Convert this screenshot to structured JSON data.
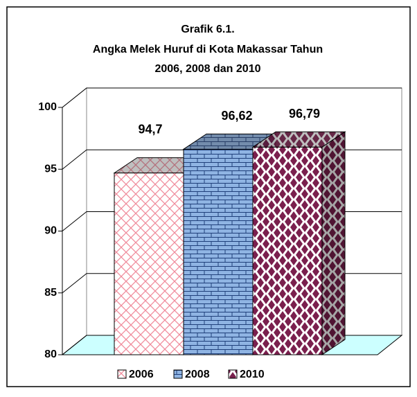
{
  "chart_data": {
    "type": "bar3d",
    "title_lines": [
      "Grafik 6.1.",
      "Angka Melek Huruf  di Kota Makassar Tahun",
      "2006, 2008 dan 2010"
    ],
    "categories": [
      "2006",
      "2008",
      "2010"
    ],
    "values": [
      94.7,
      96.62,
      96.79
    ],
    "value_labels": [
      "94,7",
      "96,62",
      "96,79"
    ],
    "colors": [
      "#f08c9c",
      "#3f6fb0",
      "#7a1f4d"
    ],
    "ylim": [
      80,
      100
    ],
    "yticks": [
      80,
      85,
      90,
      95,
      100
    ],
    "grid": true,
    "legend": "bottom"
  }
}
